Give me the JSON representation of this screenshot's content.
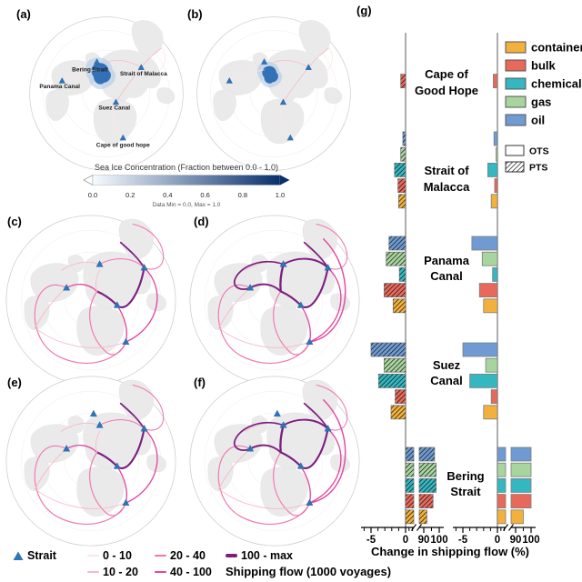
{
  "panels": {
    "a": "(a)",
    "b": "(b)",
    "c": "(c)",
    "d": "(d)",
    "e": "(e)",
    "f": "(f)",
    "g": "(g)"
  },
  "map_annotations": {
    "bering": "Bering Strait",
    "malacca": "Strait of Malacca",
    "panama": "Panama Canal",
    "suez": "Suez Canal",
    "cape": "Cape of good hope"
  },
  "sea_ice_color": "#2B6CB4",
  "colorbar": {
    "title": "Sea Ice Concentration (Fraction between 0.0 - 1.0)",
    "ticks": [
      "0.0",
      "0.2",
      "0.4",
      "0.6",
      "0.8",
      "1.0"
    ],
    "note": "Data Min = 0.0, Max = 1.0",
    "color_start": "#F7FBFF",
    "color_end": "#08306B"
  },
  "map_legend": {
    "strait_label": "Strait",
    "strait_marker_color": "#2E75B6",
    "flow_caption": "Shipping flow (1000 voyages)",
    "classes": [
      {
        "label": "0 - 10",
        "color": "#FBE7E4"
      },
      {
        "label": "10 - 20",
        "color": "#F8B9C8"
      },
      {
        "label": "20 - 40",
        "color": "#F176AF"
      },
      {
        "label": "40 - 100",
        "color": "#E2479F"
      },
      {
        "label": "100 - max",
        "color": "#7C1E7E"
      }
    ]
  },
  "chart_data": {
    "type": "bar",
    "orientation": "horizontal",
    "xlabel": "Change in shipping flow (%)",
    "x_tick_labels": [
      "-5",
      "0",
      "90",
      "100"
    ],
    "axis_break": {
      "from": 1.5,
      "to": 90
    },
    "xlim_left": -6.5,
    "xlim_right": 103,
    "groups": [
      "Cape of Good Hope",
      "Strait of Malacca",
      "Panama Canal",
      "Suez Canal",
      "Bering Strait"
    ],
    "group_label_lines": [
      [
        "Cape of",
        "Good Hope"
      ],
      [
        "Strait of",
        "Malacca"
      ],
      [
        "Panama",
        "Canal"
      ],
      [
        "Suez",
        "Canal"
      ],
      [
        "Bering",
        "Strait"
      ]
    ],
    "cargo_types": [
      "oil",
      "gas",
      "chemical",
      "bulk",
      "container"
    ],
    "legend": {
      "cargo": [
        {
          "name": "container",
          "color": "#F2B13D"
        },
        {
          "name": "bulk",
          "color": "#E7695B"
        },
        {
          "name": "chemical",
          "color": "#34B7C0"
        },
        {
          "name": "gas",
          "color": "#A8D49E"
        },
        {
          "name": "oil",
          "color": "#6F9BD2"
        }
      ],
      "scenarios": [
        {
          "name": "OTS",
          "hatched": false
        },
        {
          "name": "PTS",
          "hatched": true
        }
      ]
    },
    "subcharts": [
      {
        "scenario": "PTS",
        "hatched": true,
        "position": "left",
        "values": {
          "Cape of Good Hope": [
            0,
            0,
            0,
            -0.7,
            0
          ],
          "Strait of Malacca": [
            -0.4,
            -0.7,
            -1.6,
            -1.1,
            -1.0
          ],
          "Panama Canal": [
            -2.4,
            -2.8,
            -0.9,
            -3.1,
            -1.8
          ],
          "Suez Canal": [
            -5.0,
            -3.1,
            -3.9,
            -1.5,
            -2.1
          ],
          "Bering Strait": [
            97,
            98,
            98,
            96,
            92
          ]
        }
      },
      {
        "scenario": "OTS",
        "hatched": false,
        "position": "right",
        "values": {
          "Cape of Good Hope": [
            0,
            0,
            0,
            -0.6,
            0
          ],
          "Strait of Malacca": [
            -0.5,
            -0.2,
            -1.4,
            -0.4,
            -0.9
          ],
          "Panama Canal": [
            -3.7,
            -2.2,
            -0.7,
            -2.6,
            -2.0
          ],
          "Suez Canal": [
            -5.0,
            -1.7,
            -4.0,
            -0.9,
            -2.0
          ],
          "Bering Strait": [
            100,
            100,
            100,
            100,
            95
          ]
        }
      }
    ]
  }
}
